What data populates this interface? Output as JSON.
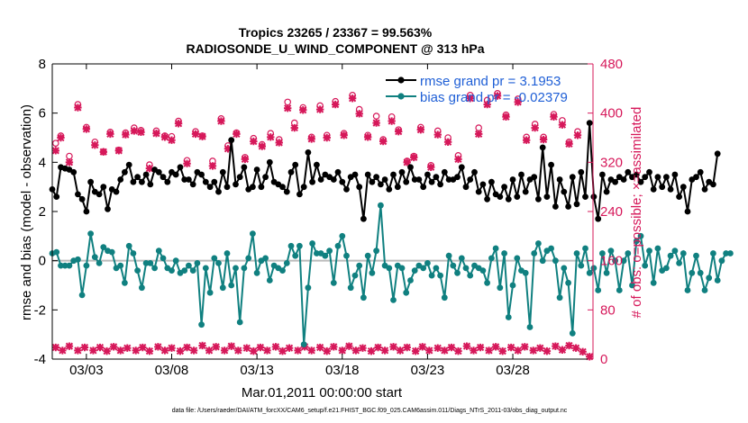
{
  "chart_data": {
    "type": "line",
    "title_line1": "Tropics 23265 / 23367 = 99.563%",
    "title_line2": "RADIOSONDE_U_WIND_COMPONENT @ 313 hPa",
    "xlabel": "Mar.01,2011 00:00:00 start",
    "ylabel_left": "rmse and bias (model - observation)",
    "ylabel_right": "# of obs: o=possible; ×=assimilated",
    "footer": "data file: /Users/raeder/DAI/ATM_forcXX/CAM6_setup/f.e21.FHIST_BGC.f09_025.CAM6assim.011/Diags_NTrS_2011-03/obs_diag_output.nc",
    "xlim": [
      1,
      32.7
    ],
    "ylim_left": [
      -4,
      8
    ],
    "ylim_right": [
      0,
      480
    ],
    "x_ticks": [
      3,
      8,
      13,
      18,
      23,
      28
    ],
    "x_tick_labels": [
      "03/03",
      "03/08",
      "03/13",
      "03/18",
      "03/23",
      "03/28"
    ],
    "y_left_ticks": [
      -4,
      -2,
      0,
      2,
      4,
      6,
      8
    ],
    "y_left_tick_labels": [
      "-4",
      "-2",
      "0",
      "2",
      "4",
      "6",
      "8"
    ],
    "y_right_ticks": [
      0,
      80,
      160,
      240,
      320,
      400,
      480
    ],
    "y_right_tick_labels": [
      "0",
      "80",
      "160",
      "240",
      "320",
      "400",
      "480"
    ],
    "x_start": 1.0,
    "x_step": 0.25,
    "colors": {
      "rmse": "#000000",
      "bias": "#108080",
      "obs": "#d6185a",
      "legend_text": "#1f5fd6",
      "zero_line": "#bbbbbb"
    },
    "series": [
      {
        "name": "rmse grand pr = 3.1953",
        "axis": "left",
        "values": [
          2.9,
          2.6,
          3.8,
          3.75,
          3.7,
          3.6,
          2.7,
          2.5,
          2.0,
          3.2,
          2.8,
          2.7,
          3.0,
          2.1,
          2.9,
          2.8,
          3.3,
          3.6,
          3.9,
          3.2,
          3.4,
          3.2,
          3.5,
          3.1,
          3.7,
          3.6,
          3.4,
          3.2,
          3.6,
          3.5,
          3.8,
          3.3,
          3.3,
          3.1,
          3.6,
          3.5,
          3.2,
          3.0,
          3.2,
          2.8,
          3.6,
          3.0,
          4.9,
          3.1,
          3.4,
          3.8,
          2.9,
          3.0,
          3.7,
          3.0,
          3.4,
          4.0,
          3.2,
          3.1,
          3.0,
          2.8,
          3.6,
          3.9,
          2.7,
          3.0,
          4.4,
          3.2,
          3.9,
          3.3,
          3.5,
          3.4,
          3.3,
          3.6,
          3.2,
          2.9,
          3.4,
          3.5,
          3.0,
          1.7,
          3.5,
          3.2,
          3.4,
          3.1,
          3.3,
          2.9,
          3.5,
          3.0,
          3.6,
          3.2,
          3.8,
          3.3,
          3.3,
          3.0,
          3.5,
          3.2,
          3.4,
          3.1,
          3.6,
          3.3,
          3.3,
          3.4,
          3.8,
          3.0,
          3.3,
          3.6,
          2.8,
          3.1,
          2.5,
          3.2,
          2.7,
          2.6,
          3.0,
          2.5,
          3.3,
          2.6,
          3.5,
          2.8,
          3.3,
          3.4,
          2.5,
          4.6,
          2.6,
          3.9,
          2.2,
          3.3,
          2.8,
          2.2,
          3.4,
          2.3,
          3.6,
          2.6,
          5.6,
          2.6,
          1.7,
          3.5,
          2.8,
          3.3,
          3.2,
          3.4,
          3.3,
          3.6,
          3.4,
          3.5,
          3.2,
          3.4,
          3.6,
          2.9,
          3.4,
          3.0,
          3.4,
          2.9,
          3.5,
          2.6,
          3.0,
          2.0,
          3.3,
          3.4,
          3.6,
          2.9,
          3.2,
          3.1,
          4.35
        ]
      },
      {
        "name": "bias grand pr = -0.02379",
        "axis": "left",
        "values": [
          0.3,
          0.35,
          -0.2,
          -0.2,
          -0.2,
          0.0,
          0.05,
          -1.4,
          -0.2,
          1.1,
          0.15,
          -0.1,
          0.55,
          0.4,
          0.35,
          -0.3,
          -0.2,
          -0.9,
          0.6,
          0.3,
          -0.4,
          -1.1,
          -0.1,
          -0.1,
          -0.3,
          0.4,
          0.1,
          -0.3,
          -0.4,
          0.0,
          -0.5,
          -0.4,
          -0.2,
          -0.4,
          -0.1,
          -2.6,
          -0.3,
          -1.3,
          0.1,
          -0.1,
          -1.1,
          0.3,
          -1.0,
          -0.3,
          -2.5,
          -0.3,
          0.1,
          1.1,
          -0.5,
          0.0,
          0.1,
          -0.8,
          -0.2,
          -0.3,
          -0.4,
          -0.1,
          0.6,
          0.2,
          0.6,
          -3.4,
          -1.1,
          0.7,
          0.3,
          0.3,
          0.2,
          0.4,
          -0.9,
          0.6,
          1.0,
          0.2,
          -1.1,
          -0.6,
          -0.2,
          -1.5,
          0.2,
          -0.5,
          0.4,
          2.25,
          -0.2,
          -0.3,
          -1.6,
          -0.2,
          -0.3,
          -1.3,
          -0.8,
          -0.4,
          -0.2,
          -0.3,
          -0.1,
          -0.6,
          -0.3,
          -0.6,
          -1.5,
          0.2,
          -0.2,
          -0.5,
          0.1,
          -0.3,
          -0.6,
          -0.2,
          -0.3,
          -0.4,
          -0.9,
          0.1,
          0.5,
          -1.1,
          0.3,
          -2.3,
          -1.0,
          0.1,
          -0.4,
          -0.5,
          -2.7,
          0.3,
          0.7,
          0.0,
          0.4,
          0.5,
          0.0,
          -1.5,
          -0.3,
          -0.9,
          -2.95,
          0.3,
          -0.2,
          0.5,
          -0.5,
          -0.3,
          -1.2,
          0.3,
          -0.5,
          0.4,
          0.0,
          -1.2,
          0.0,
          0.3,
          -1.0,
          0.8,
          1.0,
          -0.2,
          0.4,
          -0.9,
          0.5,
          -0.4,
          -0.3,
          0.2,
          0.4,
          -0.1,
          0.3,
          -1.2,
          -0.5,
          0.2,
          -0.5,
          -1.2,
          -0.7,
          0.3,
          -0.8,
          0.0,
          0.3,
          0.3
        ]
      }
    ],
    "obs_series": [
      {
        "name": "possible",
        "marker": "o",
        "axis": "right",
        "points": [
          [
            1.2,
            351
          ],
          [
            1.5,
            363
          ],
          [
            2.0,
            330
          ],
          [
            2.5,
            414
          ],
          [
            3.0,
            377
          ],
          [
            3.5,
            353
          ],
          [
            4.0,
            337
          ],
          [
            4.4,
            369
          ],
          [
            4.9,
            340
          ],
          [
            5.3,
            368
          ],
          [
            5.8,
            376
          ],
          [
            6.2,
            372
          ],
          [
            6.7,
            316
          ],
          [
            7.1,
            371
          ],
          [
            7.6,
            363
          ],
          [
            8.0,
            362
          ],
          [
            8.4,
            387
          ],
          [
            8.9,
            323
          ],
          [
            9.4,
            370
          ],
          [
            9.8,
            363
          ],
          [
            10.4,
            322
          ],
          [
            10.9,
            391
          ],
          [
            11.3,
            347
          ],
          [
            11.8,
            368
          ],
          [
            12.3,
            328
          ],
          [
            12.8,
            359
          ],
          [
            13.3,
            349
          ],
          [
            13.8,
            367
          ],
          [
            14.3,
            357
          ],
          [
            14.8,
            418
          ],
          [
            15.2,
            384
          ],
          [
            15.7,
            409
          ],
          [
            16.2,
            361
          ],
          [
            16.7,
            412
          ],
          [
            17.1,
            364
          ],
          [
            17.6,
            419
          ],
          [
            18.1,
            367
          ],
          [
            18.6,
            429
          ],
          [
            19.0,
            406
          ],
          [
            19.5,
            364
          ],
          [
            20.0,
            395
          ],
          [
            20.4,
            357
          ],
          [
            20.9,
            394
          ],
          [
            21.3,
            373
          ],
          [
            21.8,
            322
          ],
          [
            22.2,
            330
          ],
          [
            22.6,
            377
          ],
          [
            23.2,
            315
          ],
          [
            23.6,
            371
          ],
          [
            24.2,
            360
          ],
          [
            24.8,
            331
          ],
          [
            25.5,
            429
          ],
          [
            26.0,
            376
          ],
          [
            26.5,
            421
          ],
          [
            27.1,
            432
          ],
          [
            27.6,
            397
          ],
          [
            28.3,
            423
          ],
          [
            28.8,
            361
          ],
          [
            29.3,
            382
          ],
          [
            29.8,
            361
          ],
          [
            30.4,
            398
          ],
          [
            30.9,
            388
          ],
          [
            31.3,
            353
          ],
          [
            31.8,
            370
          ]
        ]
      },
      {
        "name": "assimilated",
        "marker": "x",
        "axis": "right",
        "points": [
          [
            1.2,
            339
          ],
          [
            1.5,
            360
          ],
          [
            2.0,
            320
          ],
          [
            2.5,
            409
          ],
          [
            3.0,
            374
          ],
          [
            3.5,
            348
          ],
          [
            4.0,
            337
          ],
          [
            4.4,
            366
          ],
          [
            4.9,
            339
          ],
          [
            5.3,
            365
          ],
          [
            5.8,
            371
          ],
          [
            6.2,
            369
          ],
          [
            6.7,
            310
          ],
          [
            7.1,
            367
          ],
          [
            7.6,
            361
          ],
          [
            8.0,
            356
          ],
          [
            8.4,
            383
          ],
          [
            8.9,
            318
          ],
          [
            9.4,
            366
          ],
          [
            9.8,
            362
          ],
          [
            10.4,
            314
          ],
          [
            10.9,
            387
          ],
          [
            11.3,
            342
          ],
          [
            11.8,
            366
          ],
          [
            12.3,
            325
          ],
          [
            12.8,
            354
          ],
          [
            13.3,
            346
          ],
          [
            13.8,
            361
          ],
          [
            14.3,
            352
          ],
          [
            14.8,
            408
          ],
          [
            15.2,
            376
          ],
          [
            15.7,
            405
          ],
          [
            16.2,
            358
          ],
          [
            16.7,
            406
          ],
          [
            17.1,
            360
          ],
          [
            17.6,
            414
          ],
          [
            18.1,
            364
          ],
          [
            18.6,
            424
          ],
          [
            19.0,
            399
          ],
          [
            19.5,
            361
          ],
          [
            20.0,
            384
          ],
          [
            20.4,
            354
          ],
          [
            20.9,
            387
          ],
          [
            21.3,
            370
          ],
          [
            21.8,
            320
          ],
          [
            22.2,
            328
          ],
          [
            22.6,
            373
          ],
          [
            23.2,
            312
          ],
          [
            23.6,
            365
          ],
          [
            24.2,
            353
          ],
          [
            24.8,
            325
          ],
          [
            25.5,
            424
          ],
          [
            26.0,
            366
          ],
          [
            26.5,
            414
          ],
          [
            27.1,
            428
          ],
          [
            27.6,
            394
          ],
          [
            28.3,
            418
          ],
          [
            28.8,
            356
          ],
          [
            29.3,
            376
          ],
          [
            29.8,
            357
          ],
          [
            30.4,
            394
          ],
          [
            30.9,
            381
          ],
          [
            31.3,
            350
          ],
          [
            31.8,
            364
          ],
          [
            1.2,
            19
          ],
          [
            1.6,
            14
          ],
          [
            2.0,
            21
          ],
          [
            2.5,
            14
          ],
          [
            2.9,
            19
          ],
          [
            3.4,
            14
          ],
          [
            3.8,
            19
          ],
          [
            4.2,
            13
          ],
          [
            4.6,
            20
          ],
          [
            5.0,
            14
          ],
          [
            5.4,
            18
          ],
          [
            5.9,
            14
          ],
          [
            6.3,
            19
          ],
          [
            6.7,
            13
          ],
          [
            7.2,
            20
          ],
          [
            7.6,
            14
          ],
          [
            8.0,
            18
          ],
          [
            8.5,
            13
          ],
          [
            8.9,
            19
          ],
          [
            9.3,
            14
          ],
          [
            9.8,
            22
          ],
          [
            10.2,
            14
          ],
          [
            10.6,
            20
          ],
          [
            11.1,
            14
          ],
          [
            11.5,
            21
          ],
          [
            11.9,
            14
          ],
          [
            12.4,
            18
          ],
          [
            12.8,
            13
          ],
          [
            13.2,
            19
          ],
          [
            13.6,
            14
          ],
          [
            14.1,
            20
          ],
          [
            14.5,
            13
          ],
          [
            14.9,
            18
          ],
          [
            15.4,
            14
          ],
          [
            15.8,
            20
          ],
          [
            16.2,
            14
          ],
          [
            16.7,
            19
          ],
          [
            17.1,
            13
          ],
          [
            17.5,
            20
          ],
          [
            18.0,
            14
          ],
          [
            18.4,
            21
          ],
          [
            18.8,
            14
          ],
          [
            19.2,
            18
          ],
          [
            19.7,
            13
          ],
          [
            20.1,
            19
          ],
          [
            20.5,
            14
          ],
          [
            21.0,
            20
          ],
          [
            21.4,
            14
          ],
          [
            21.8,
            19
          ],
          [
            22.3,
            13
          ],
          [
            22.7,
            20
          ],
          [
            23.1,
            14
          ],
          [
            23.6,
            18
          ],
          [
            24.0,
            14
          ],
          [
            24.4,
            19
          ],
          [
            24.8,
            13
          ],
          [
            25.3,
            21
          ],
          [
            25.7,
            14
          ],
          [
            26.1,
            19
          ],
          [
            26.6,
            14
          ],
          [
            27.0,
            20
          ],
          [
            27.4,
            13
          ],
          [
            27.9,
            19
          ],
          [
            28.3,
            14
          ],
          [
            28.7,
            20
          ],
          [
            29.2,
            14
          ],
          [
            29.6,
            18
          ],
          [
            30.0,
            13
          ],
          [
            30.5,
            21
          ],
          [
            30.9,
            15
          ],
          [
            31.3,
            22
          ],
          [
            31.7,
            18
          ],
          [
            32.1,
            12
          ],
          [
            32.5,
            4
          ]
        ]
      }
    ],
    "legend_placement": "top-right"
  }
}
